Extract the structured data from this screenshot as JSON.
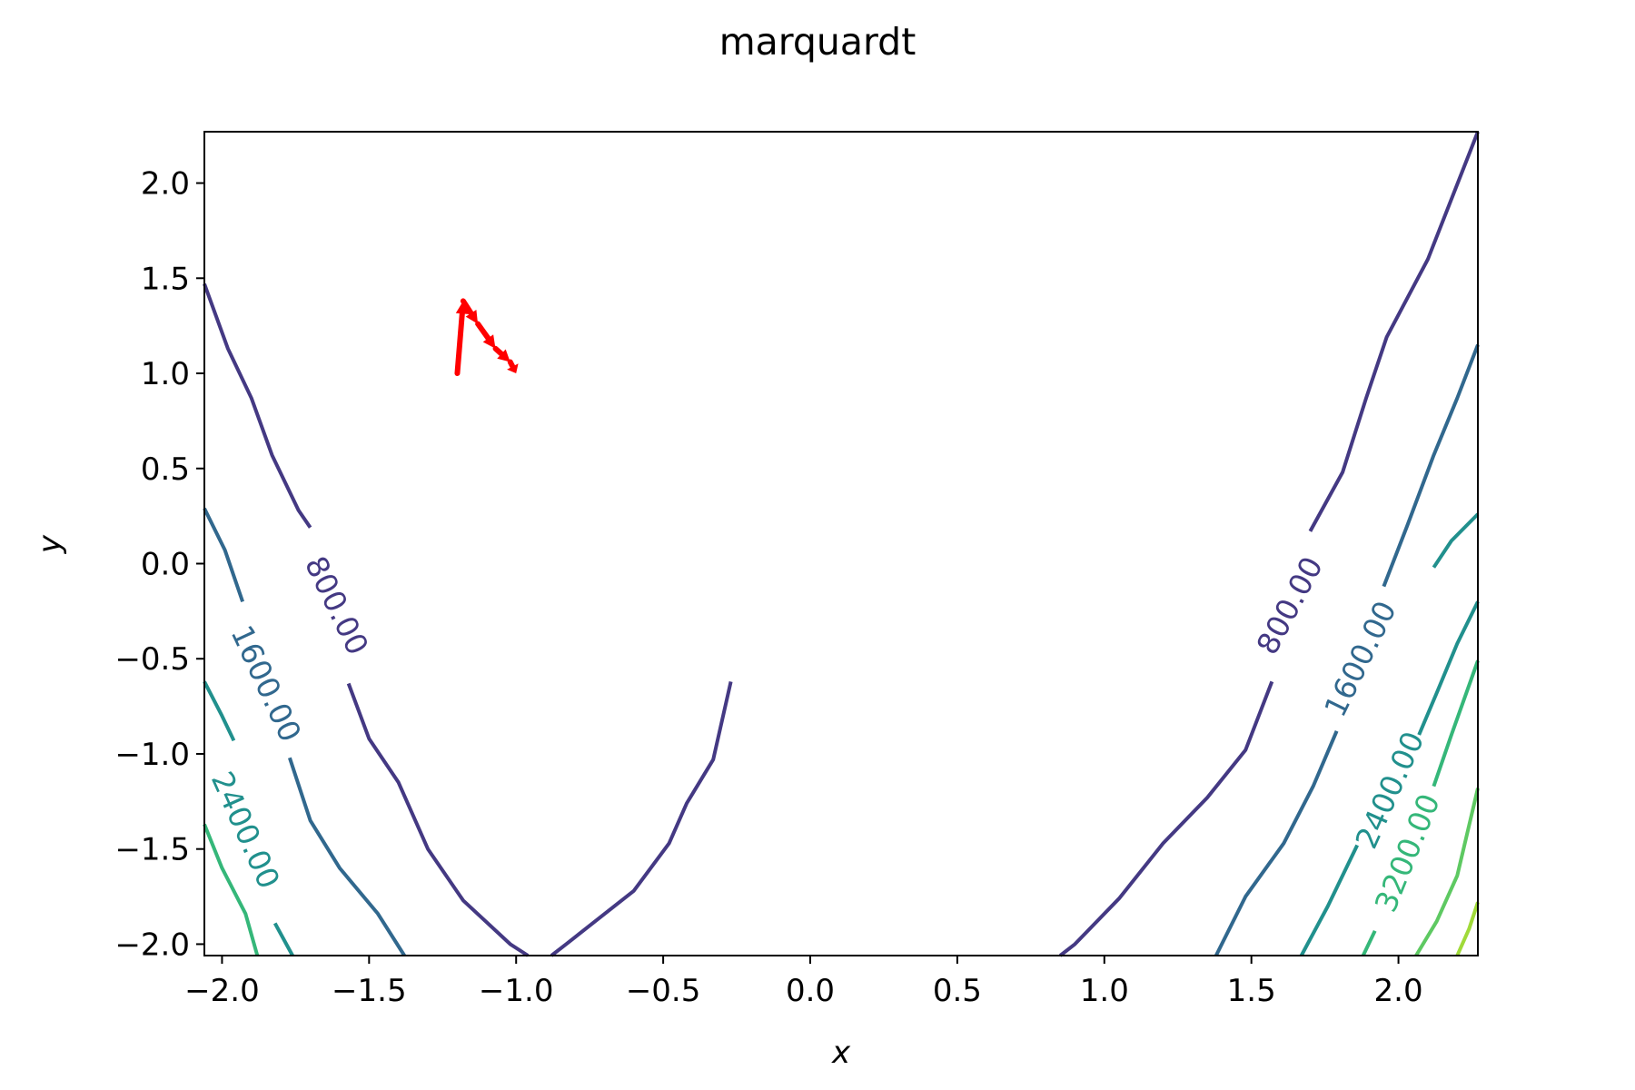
{
  "chart_data": {
    "type": "contour",
    "title": "marquardt",
    "xlabel": "x",
    "ylabel": "y",
    "xlim": [
      -2.06,
      2.27
    ],
    "ylim": [
      -2.06,
      2.27
    ],
    "x_ticks": [
      {
        "value": -2.0,
        "label": "−2.0"
      },
      {
        "value": -1.5,
        "label": "−1.5"
      },
      {
        "value": -1.0,
        "label": "−1.0"
      },
      {
        "value": -0.5,
        "label": "−0.5"
      },
      {
        "value": 0.0,
        "label": "0.0"
      },
      {
        "value": 0.5,
        "label": "0.5"
      },
      {
        "value": 1.0,
        "label": "1.0"
      },
      {
        "value": 1.5,
        "label": "1.5"
      },
      {
        "value": 2.0,
        "label": "2.0"
      }
    ],
    "y_ticks": [
      {
        "value": -2.0,
        "label": "−2.0"
      },
      {
        "value": -1.5,
        "label": "−1.5"
      },
      {
        "value": -1.0,
        "label": "−1.0"
      },
      {
        "value": -0.5,
        "label": "−0.5"
      },
      {
        "value": 0.0,
        "label": "0.0"
      },
      {
        "value": 0.5,
        "label": "0.5"
      },
      {
        "value": 1.0,
        "label": "1.0"
      },
      {
        "value": 1.5,
        "label": "1.5"
      },
      {
        "value": 2.0,
        "label": "2.0"
      }
    ],
    "contours": [
      {
        "level": 800,
        "color": "#443983",
        "paths": [
          [
            [
              -2.06,
              1.47
            ],
            [
              -1.98,
              1.13
            ],
            [
              -1.9,
              0.87
            ],
            [
              -1.83,
              0.57
            ],
            [
              -1.74,
              0.28
            ],
            [
              -1.7,
              0.19
            ]
          ],
          [
            [
              -1.57,
              -0.63
            ],
            [
              -1.5,
              -0.92
            ],
            [
              -1.4,
              -1.15
            ],
            [
              -1.3,
              -1.5
            ],
            [
              -1.18,
              -1.77
            ],
            [
              -1.02,
              -2.0
            ],
            [
              -0.96,
              -2.06
            ]
          ],
          [
            [
              -0.88,
              -2.06
            ],
            [
              -0.83,
              -2.0
            ],
            [
              -0.6,
              -1.72
            ],
            [
              -0.48,
              -1.47
            ],
            [
              -0.42,
              -1.26
            ],
            [
              -0.33,
              -1.03
            ],
            [
              -0.27,
              -0.62
            ]
          ],
          [
            [
              0.85,
              -2.06
            ],
            [
              0.9,
              -2.0
            ],
            [
              1.05,
              -1.76
            ],
            [
              1.2,
              -1.47
            ],
            [
              1.35,
              -1.23
            ],
            [
              1.48,
              -0.98
            ],
            [
              1.57,
              -0.62
            ]
          ],
          [
            [
              1.7,
              0.17
            ],
            [
              1.81,
              0.48
            ],
            [
              1.89,
              0.87
            ],
            [
              1.96,
              1.19
            ],
            [
              2.1,
              1.6
            ],
            [
              2.27,
              2.27
            ]
          ]
        ],
        "labels": [
          {
            "x": -1.61,
            "y": -0.22,
            "angle": 64,
            "text": "800.00"
          },
          {
            "x": 1.63,
            "y": -0.22,
            "angle": -62,
            "text": "800.00"
          }
        ]
      },
      {
        "level": 1600,
        "color": "#31688e",
        "paths": [
          [
            [
              -2.06,
              0.29
            ],
            [
              -1.99,
              0.07
            ],
            [
              -1.93,
              -0.2
            ]
          ],
          [
            [
              -1.77,
              -1.02
            ],
            [
              -1.7,
              -1.35
            ],
            [
              -1.6,
              -1.6
            ],
            [
              -1.47,
              -1.84
            ],
            [
              -1.38,
              -2.06
            ]
          ],
          [
            [
              1.38,
              -2.06
            ],
            [
              1.48,
              -1.75
            ],
            [
              1.61,
              -1.47
            ],
            [
              1.71,
              -1.17
            ],
            [
              1.79,
              -0.88
            ]
          ],
          [
            [
              1.95,
              -0.12
            ],
            [
              2.03,
              0.2
            ],
            [
              2.12,
              0.57
            ],
            [
              2.2,
              0.87
            ],
            [
              2.27,
              1.15
            ]
          ]
        ],
        "labels": [
          {
            "x": -1.85,
            "y": -0.63,
            "angle": 65,
            "text": "1600.00"
          },
          {
            "x": 1.87,
            "y": -0.5,
            "angle": -64,
            "text": "1600.00"
          }
        ]
      },
      {
        "level": 2400,
        "color": "#21908d",
        "paths": [
          [
            [
              -2.06,
              -0.62
            ],
            [
              -2.0,
              -0.8
            ],
            [
              -1.96,
              -0.93
            ]
          ],
          [
            [
              -1.82,
              -1.89
            ],
            [
              -1.76,
              -2.06
            ]
          ],
          [
            [
              1.67,
              -2.06
            ],
            [
              1.76,
              -1.8
            ],
            [
              1.86,
              -1.48
            ]
          ],
          [
            [
              2.07,
              -0.9
            ],
            [
              2.13,
              -0.68
            ],
            [
              2.2,
              -0.42
            ],
            [
              2.27,
              -0.2
            ]
          ]
        ],
        "labels": [
          {
            "x": -1.92,
            "y": -1.4,
            "angle": 66,
            "text": "2400.00"
          },
          {
            "x": 1.97,
            "y": -1.19,
            "angle": -66,
            "text": "2400.00"
          }
        ]
      },
      {
        "level": 2400,
        "color": "#21908d",
        "paths": [
          [
            [
              2.12,
              -0.02
            ],
            [
              2.18,
              0.12
            ],
            [
              2.27,
              0.26
            ]
          ]
        ],
        "labels": []
      },
      {
        "level": 3200,
        "color": "#35b779",
        "paths": [
          [
            [
              -2.06,
              -1.37
            ],
            [
              -2.0,
              -1.6
            ],
            [
              -1.92,
              -1.84
            ],
            [
              -1.88,
              -2.06
            ]
          ],
          [
            [
              1.88,
              -2.06
            ],
            [
              1.92,
              -1.93
            ]
          ],
          [
            [
              2.12,
              -1.17
            ],
            [
              2.18,
              -0.9
            ],
            [
              2.27,
              -0.51
            ]
          ]
        ],
        "labels": [
          {
            "x": 2.03,
            "y": -1.52,
            "angle": -68,
            "text": "3200.00"
          }
        ]
      },
      {
        "level": 4000,
        "color": "#5ec962",
        "paths": [
          [
            [
              2.06,
              -2.06
            ],
            [
              2.13,
              -1.88
            ],
            [
              2.2,
              -1.64
            ],
            [
              2.27,
              -1.18
            ]
          ]
        ],
        "labels": []
      },
      {
        "level": 4800,
        "color": "#a0da39",
        "paths": [
          [
            [
              2.2,
              -2.06
            ],
            [
              2.24,
              -1.92
            ],
            [
              2.27,
              -1.78
            ]
          ]
        ],
        "labels": []
      }
    ],
    "optimizer_path": {
      "color": "#ff0000",
      "points": [
        [
          -1.2,
          1.0
        ],
        [
          -1.18,
          1.38
        ],
        [
          -1.13,
          1.26
        ],
        [
          -1.07,
          1.13
        ],
        [
          -1.02,
          1.06
        ],
        [
          -1.0,
          1.0
        ]
      ]
    }
  }
}
